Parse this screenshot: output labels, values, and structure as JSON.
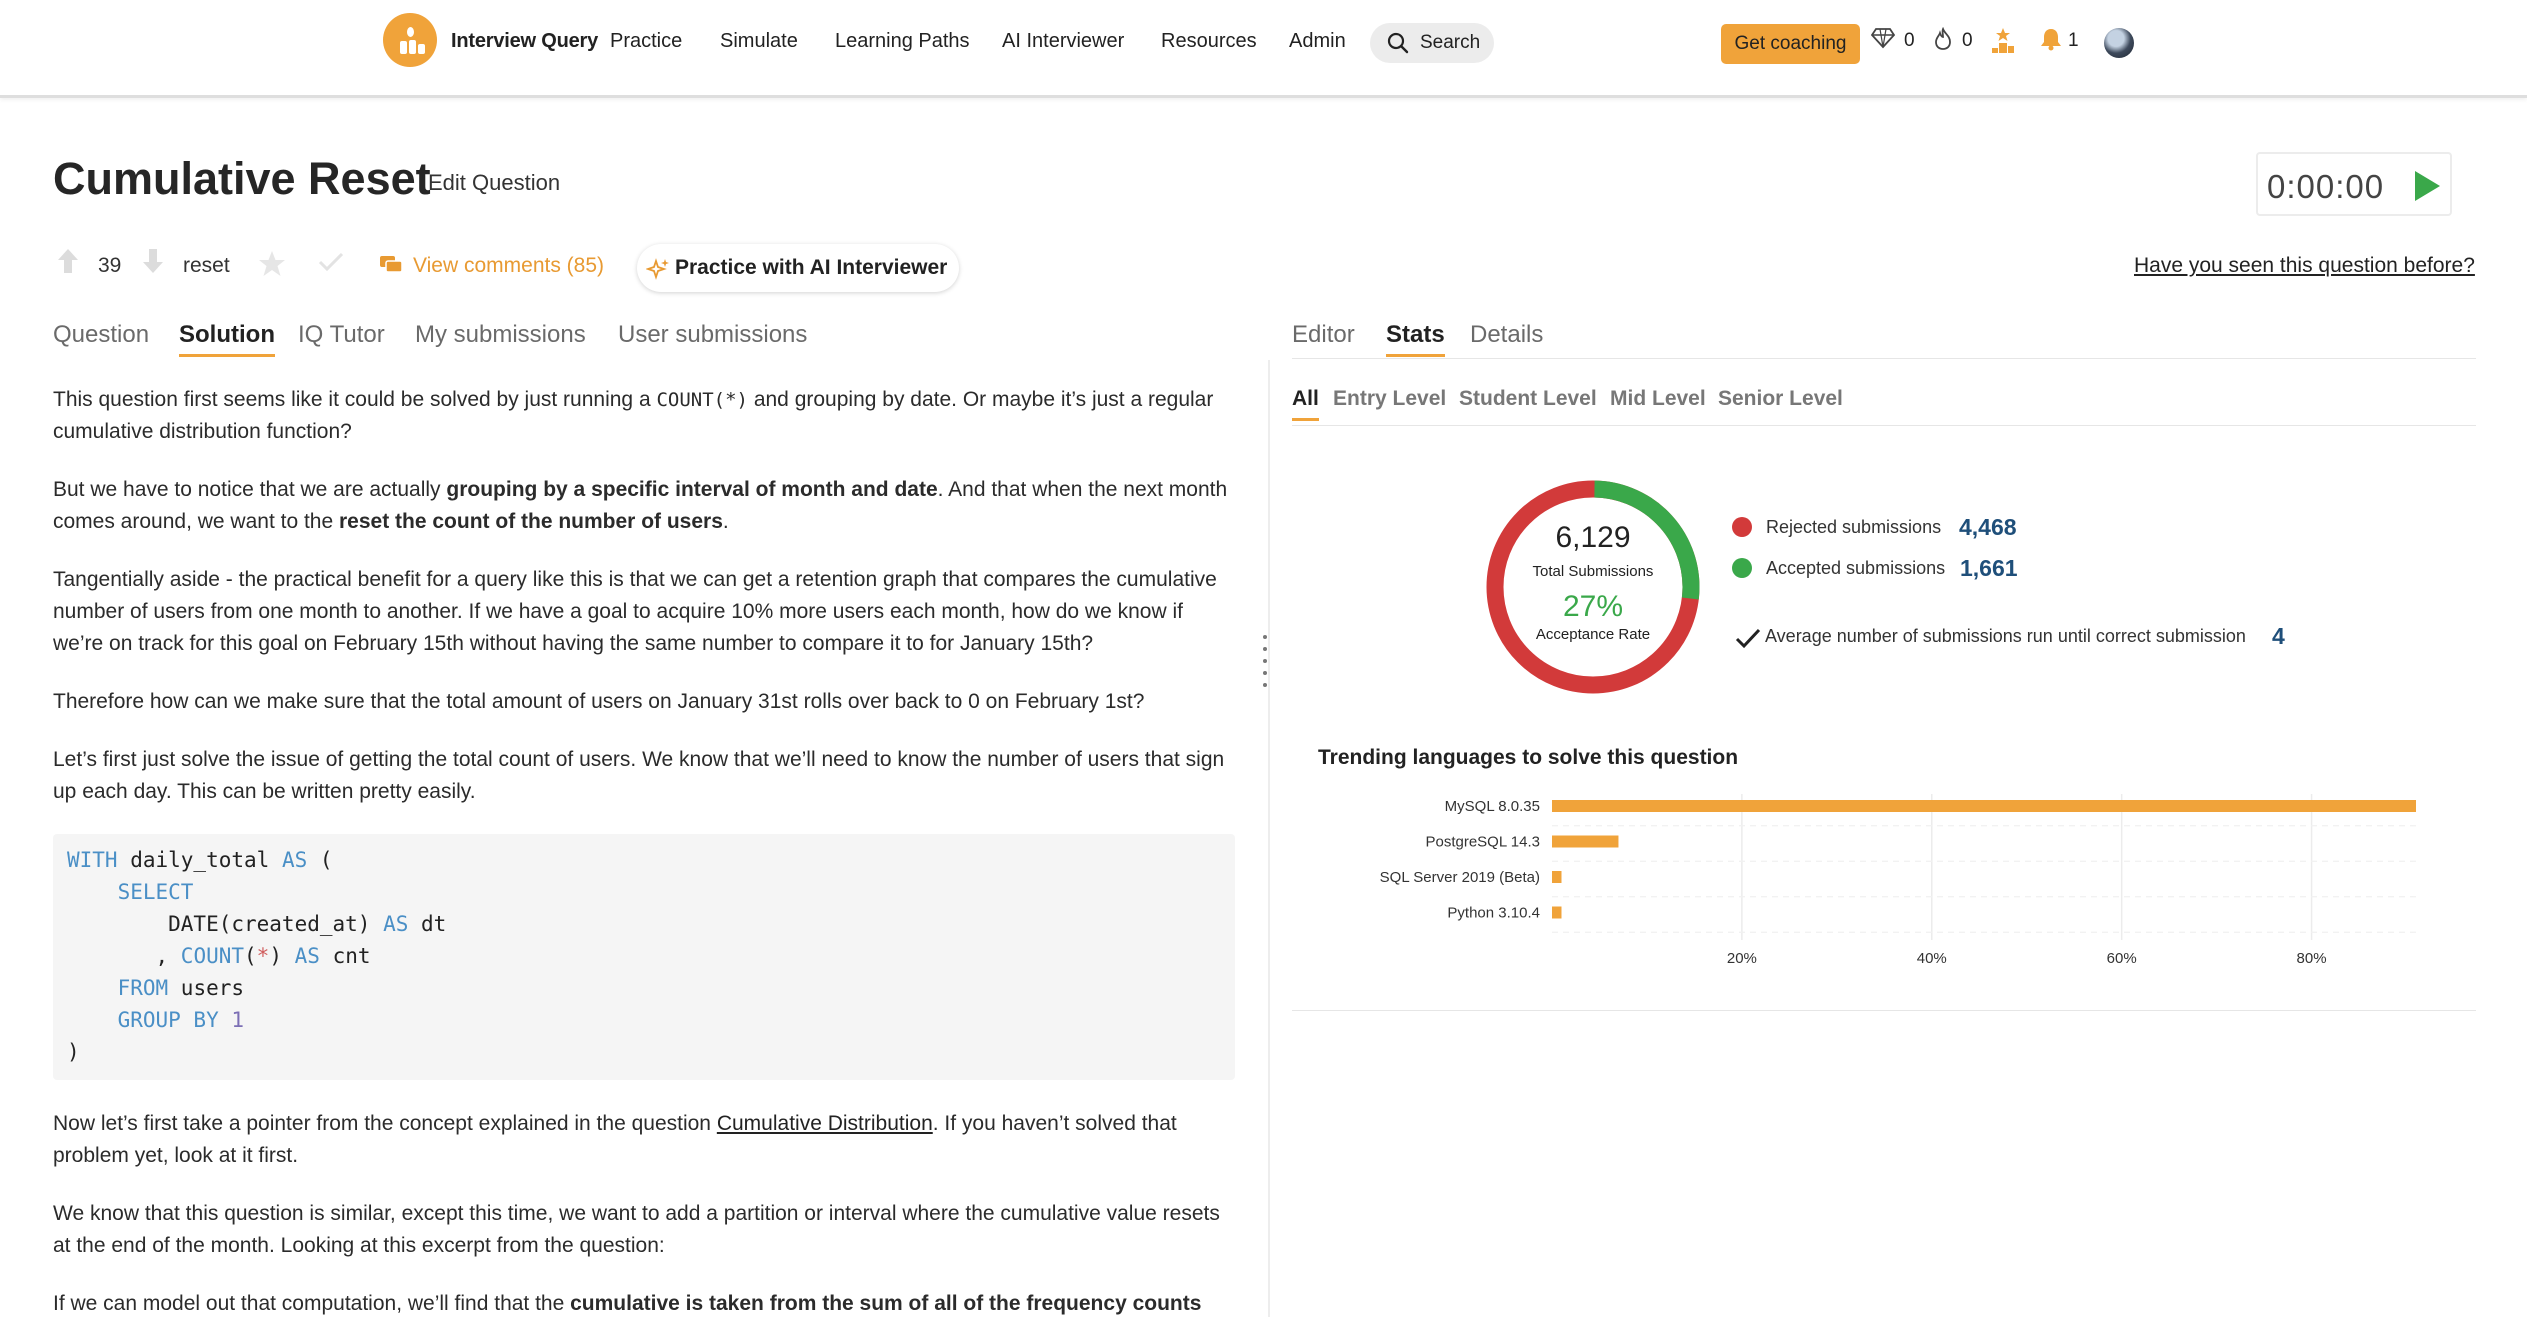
{
  "nav": {
    "brand": "Interview Query",
    "links": [
      "Practice",
      "Simulate",
      "Learning Paths",
      "AI Interviewer",
      "Resources",
      "Admin"
    ],
    "search_label": "Search",
    "coaching_label": "Get coaching",
    "gems": "0",
    "streak": "0",
    "notifications": "1",
    "colors": {
      "accent": "#f0a33a"
    }
  },
  "question": {
    "title": "Cumulative Reset",
    "edit_label": "Edit Question",
    "timer": "0:00:00",
    "votes": "39",
    "tag": "reset",
    "comments_label": "View comments (85)",
    "ai_button": "Practice with AI Interviewer",
    "seen_link": "Have you seen this question before?"
  },
  "left_tabs": [
    "Question",
    "Solution",
    "IQ Tutor",
    "My submissions",
    "User submissions"
  ],
  "right_tabs": [
    "Editor",
    "Stats",
    "Details"
  ],
  "solution": {
    "p1a": "This question first seems like it could be solved by just running a ",
    "p1code": "COUNT(*)",
    "p1b": " and grouping by date. Or maybe it’s just a regular cumulative distribution function?",
    "p2a": "But we have to notice that we are actually ",
    "p2bold": "grouping by a specific interval of month and date",
    "p2b": ". And that when the next month comes around, we want to the ",
    "p2bold2": "reset the count of the number of users",
    "p2c": ".",
    "p3": "Tangentially aside - the practical benefit for a query like this is that we can get a retention graph that compares the cumulative number of users from one month to another. If we have a goal to acquire 10% more users each month, how do we know if we’re on track for this goal on February 15th without having the same number to compare it to for January 15th?",
    "p4": "Therefore how can we make sure that the total amount of users on January 31st rolls over back to 0 on February 1st?",
    "p5": "Let’s first just solve the issue of getting the total count of users. We know that we’ll need to know the number of users that sign up each day. This can be written pretty easily.",
    "p6a": "Now let’s first take a pointer from the concept explained in the question ",
    "p6link": "Cumulative Distribution",
    "p6b": ". If you haven’t solved that problem yet, look at it first.",
    "p7": "We know that this question is similar, except this time, we want to add a partition or interval where the cumulative value resets at the end of the month. Looking at this excerpt from the question:",
    "p8a": "If we can model out that computation, we’ll find that the ",
    "p8bold": "cumulative is taken from the sum of all of the frequency counts"
  },
  "stats": {
    "levels": [
      "All",
      "Entry Level",
      "Student Level",
      "Mid Level",
      "Senior Level"
    ],
    "total": "6,129",
    "total_label": "Total Submissions",
    "rate": "27%",
    "rate_label": "Acceptance Rate",
    "rejected_label": "Rejected submissions",
    "rejected": "4,468",
    "accepted_label": "Accepted submissions",
    "accepted": "1,661",
    "avg_label": "Average number of submissions run until correct submission",
    "avg": "4",
    "trend_title": "Trending languages to solve this question",
    "colors": {
      "rejected": "#d23a3a",
      "accepted": "#3aa84a"
    }
  },
  "chart_data": {
    "type": "bar",
    "orientation": "horizontal",
    "title": "Trending languages to solve this question",
    "categories": [
      "MySQL 8.0.35",
      "PostgreSQL 14.3",
      "SQL Server 2019 (Beta)",
      "Python 3.10.4"
    ],
    "values": [
      91,
      7,
      1,
      1
    ],
    "x_ticks": [
      "20%",
      "40%",
      "60%",
      "80%"
    ],
    "xlim": [
      0,
      91
    ],
    "grid": true,
    "color": "#f0a33a"
  }
}
